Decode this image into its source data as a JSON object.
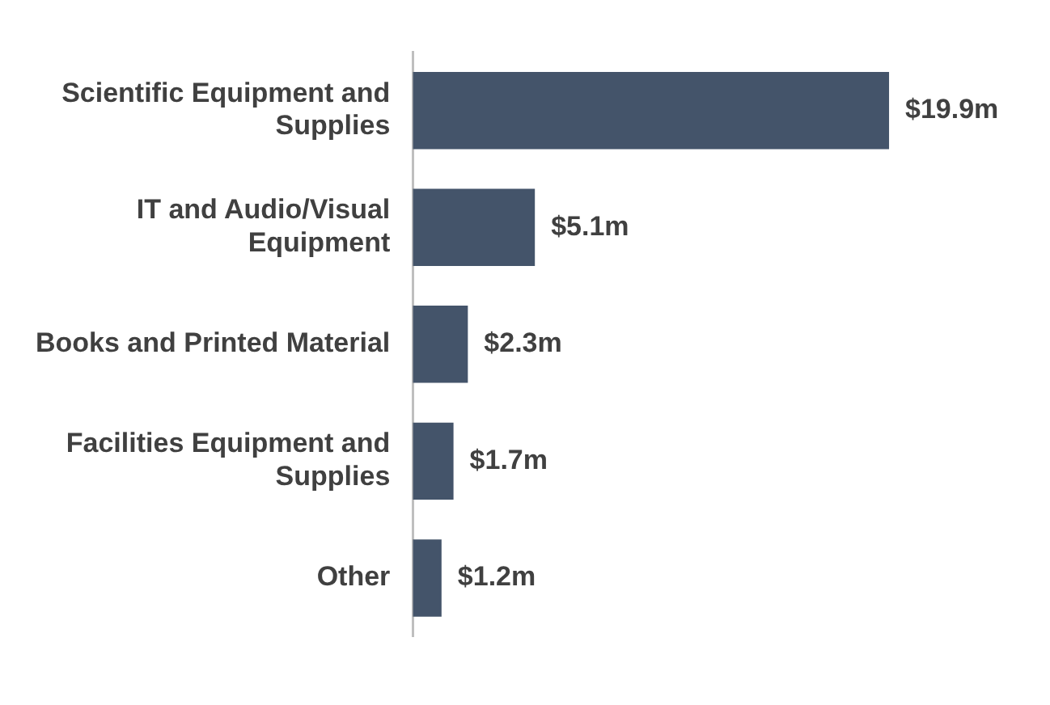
{
  "chart_data": {
    "type": "bar",
    "orientation": "horizontal",
    "categories": [
      "Scientific Equipment and Supplies",
      "IT and Audio/Visual Equipment",
      "Books and Printed Material",
      "Facilities Equipment and Supplies",
      "Other"
    ],
    "values": [
      19.9,
      5.1,
      2.3,
      1.7,
      1.2
    ],
    "value_labels": [
      "$19.9m",
      "$5.1m",
      "$2.3m",
      "$1.7m",
      "$1.2m"
    ],
    "color": "#44546a"
  }
}
